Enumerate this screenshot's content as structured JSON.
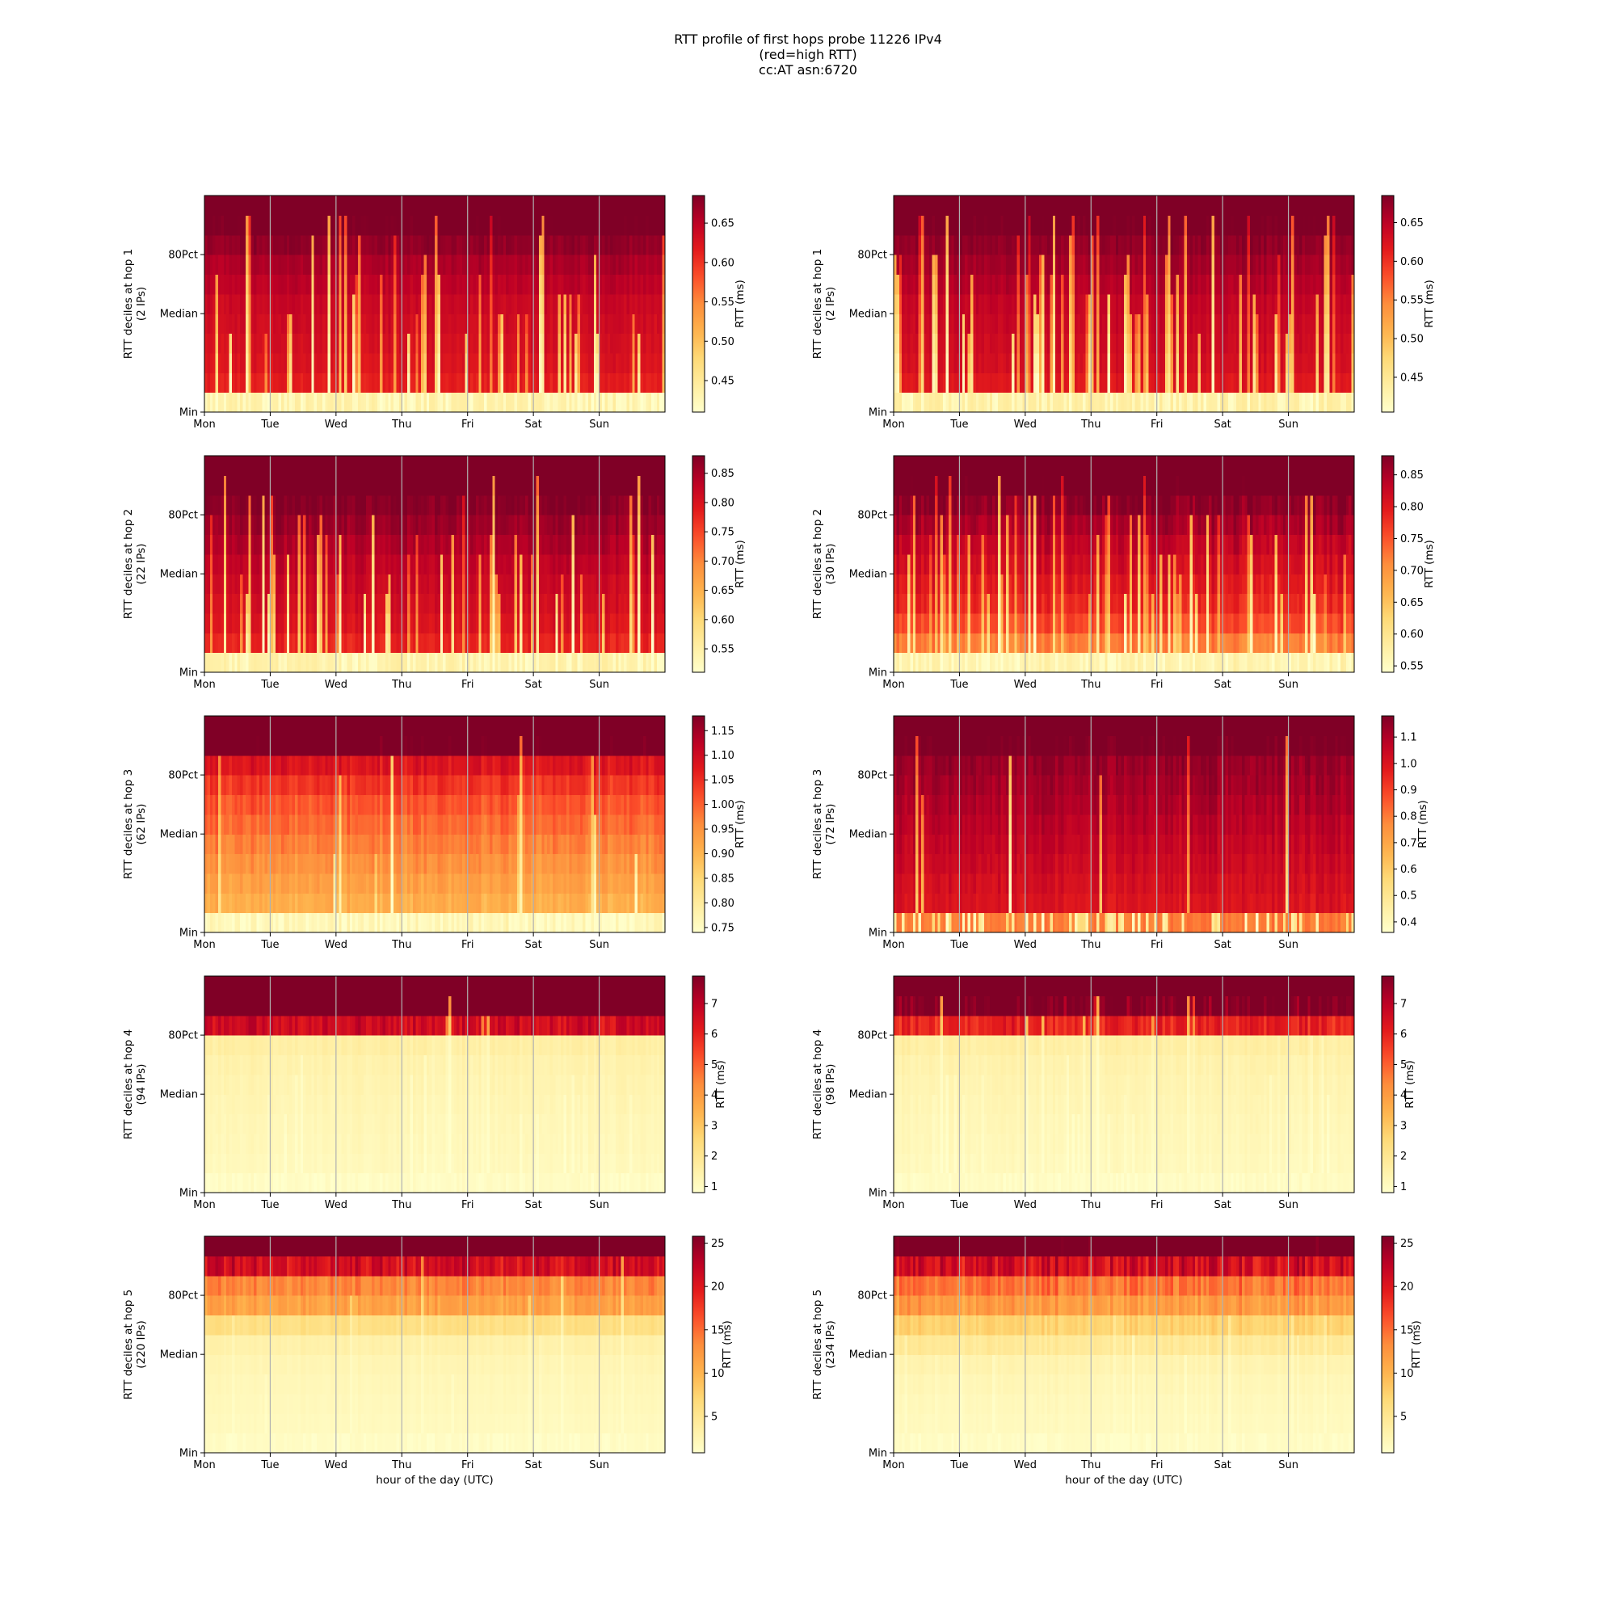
{
  "figure": {
    "title_lines": [
      "RTT profile of first hops probe 11226 IPv4",
      "(red=high RTT)",
      "cc:AT asn:6720"
    ]
  },
  "chart_data": {
    "type": "heatmap",
    "colormap": "YlOrRd",
    "colormap_stops": [
      "#ffffcc",
      "#ffeda0",
      "#fed976",
      "#feb24c",
      "#fd8d3c",
      "#fc4e2a",
      "#e31a1c",
      "#bd0026",
      "#800026"
    ],
    "grid_color": "#b0b0b0",
    "x_ticks": [
      "Mon",
      "Tue",
      "Wed",
      "Thu",
      "Fri",
      "Sat",
      "Sun"
    ],
    "x_range_hours": [
      0,
      168
    ],
    "xlabel": "hour of the day (UTC)",
    "y_ticks": [
      "Min",
      "Median",
      "80Pct"
    ],
    "colorbar_label": "RTT (ms)",
    "panels": [
      {
        "name": "hop1-a",
        "ylabel": "RTT deciles at hop 1",
        "ips": "(2 IPs)",
        "row": 0,
        "col": 0,
        "vmin": 0.41,
        "vmax": 0.685,
        "cb_ticks": [
          0.45,
          0.5,
          0.55,
          0.6,
          0.65
        ],
        "cb_tick_labels": [
          "0.45",
          "0.50",
          "0.55",
          "0.60",
          "0.65"
        ],
        "deciles": [
          0.44,
          0.615,
          0.625,
          0.63,
          0.635,
          0.64,
          0.65,
          0.66,
          0.675,
          0.69,
          0.75
        ],
        "noise": 0.012,
        "dip_prob": 0.25
      },
      {
        "name": "hop1-b",
        "ylabel": "RTT deciles at hop 1",
        "ips": "(2 IPs)",
        "row": 0,
        "col": 1,
        "vmin": 0.405,
        "vmax": 0.685,
        "cb_ticks": [
          0.45,
          0.5,
          0.55,
          0.6,
          0.65
        ],
        "cb_tick_labels": [
          "0.45",
          "0.50",
          "0.55",
          "0.60",
          "0.65"
        ],
        "deciles": [
          0.44,
          0.62,
          0.63,
          0.635,
          0.64,
          0.645,
          0.655,
          0.665,
          0.675,
          0.69,
          0.75
        ],
        "noise": 0.012,
        "dip_prob": 0.35
      },
      {
        "name": "hop2-a",
        "ylabel": "RTT deciles at hop 2",
        "ips": "(22 IPs)",
        "row": 1,
        "col": 0,
        "vmin": 0.51,
        "vmax": 0.88,
        "cb_ticks": [
          0.55,
          0.6,
          0.65,
          0.7,
          0.75,
          0.8,
          0.85
        ],
        "cb_tick_labels": [
          "0.55",
          "0.60",
          "0.65",
          "0.70",
          "0.75",
          "0.80",
          "0.85"
        ],
        "deciles": [
          0.55,
          0.78,
          0.8,
          0.81,
          0.82,
          0.83,
          0.845,
          0.86,
          0.875,
          0.9,
          1.0
        ],
        "noise": 0.015,
        "dip_prob": 0.3
      },
      {
        "name": "hop2-b",
        "ylabel": "RTT deciles at hop 2",
        "ips": "(30 IPs)",
        "row": 1,
        "col": 1,
        "vmin": 0.54,
        "vmax": 0.88,
        "cb_ticks": [
          0.55,
          0.6,
          0.65,
          0.7,
          0.75,
          0.8,
          0.85
        ],
        "cb_tick_labels": [
          "0.55",
          "0.60",
          "0.65",
          "0.70",
          "0.75",
          "0.80",
          "0.85"
        ],
        "deciles": [
          0.57,
          0.72,
          0.76,
          0.785,
          0.8,
          0.815,
          0.83,
          0.85,
          0.87,
          0.9,
          1.0
        ],
        "noise": 0.02,
        "dip_prob": 0.3
      },
      {
        "name": "hop3-a",
        "ylabel": "RTT deciles at hop 3",
        "ips": "(62 IPs)",
        "row": 2,
        "col": 0,
        "vmin": 0.74,
        "vmax": 1.18,
        "cb_ticks": [
          0.75,
          0.8,
          0.85,
          0.9,
          0.95,
          1.0,
          1.05,
          1.1,
          1.15
        ],
        "cb_tick_labels": [
          "0.75",
          "0.80",
          "0.85",
          "0.90",
          "0.95",
          "1.00",
          "1.05",
          "1.10",
          "1.15"
        ],
        "deciles": [
          0.77,
          0.91,
          0.93,
          0.95,
          0.97,
          0.99,
          1.01,
          1.04,
          1.08,
          1.2,
          1.4
        ],
        "noise": 0.02,
        "dip_prob": 0.04
      },
      {
        "name": "hop3-b",
        "ylabel": "RTT deciles at hop 3",
        "ips": "(72 IPs)",
        "row": 2,
        "col": 1,
        "vmin": 0.36,
        "vmax": 1.18,
        "cb_ticks": [
          0.4,
          0.5,
          0.6,
          0.7,
          0.8,
          0.9,
          1.0,
          1.1
        ],
        "cb_tick_labels": [
          "0.4",
          "0.5",
          "0.6",
          "0.7",
          "0.8",
          "0.9",
          "1.0",
          "1.1"
        ],
        "deciles": [
          0.8,
          1.0,
          1.02,
          1.04,
          1.06,
          1.08,
          1.1,
          1.12,
          1.14,
          1.2,
          1.4
        ],
        "noise": 0.03,
        "dip_prob": 0.03
      },
      {
        "name": "hop4-a",
        "ylabel": "RTT deciles at hop 4",
        "ips": "(94 IPs)",
        "row": 3,
        "col": 0,
        "vmin": 0.8,
        "vmax": 7.9,
        "cb_ticks": [
          1,
          2,
          3,
          4,
          5,
          6,
          7
        ],
        "cb_tick_labels": [
          "1",
          "2",
          "3",
          "4",
          "5",
          "6",
          "7"
        ],
        "deciles": [
          1.0,
          1.12,
          1.18,
          1.22,
          1.28,
          1.34,
          1.42,
          1.6,
          6.6,
          9.0,
          12.0
        ],
        "noise": 0.08,
        "dip_prob": 0.12
      },
      {
        "name": "hop4-b",
        "ylabel": "RTT deciles at hop 4",
        "ips": "(98 IPs)",
        "row": 3,
        "col": 1,
        "vmin": 0.8,
        "vmax": 7.9,
        "cb_ticks": [
          1,
          2,
          3,
          4,
          5,
          6,
          7
        ],
        "cb_tick_labels": [
          "1",
          "2",
          "3",
          "4",
          "5",
          "6",
          "7"
        ],
        "deciles": [
          1.0,
          1.12,
          1.18,
          1.22,
          1.28,
          1.34,
          1.42,
          1.6,
          6.0,
          8.0,
          12.0
        ],
        "noise": 0.08,
        "dip_prob": 0.16
      },
      {
        "name": "hop5-a",
        "ylabel": "RTT deciles at hop 5",
        "ips": "(220 IPs)",
        "row": 4,
        "col": 0,
        "vmin": 0.8,
        "vmax": 25.8,
        "cb_ticks": [
          5,
          10,
          15,
          20,
          25
        ],
        "cb_tick_labels": [
          "5",
          "10",
          "15",
          "20",
          "25"
        ],
        "deciles": [
          1.5,
          1.8,
          2.0,
          2.2,
          2.5,
          3.2,
          6.0,
          11.5,
          13.5,
          21.0,
          30.0
        ],
        "noise": 0.1,
        "dip_prob": 0.08
      },
      {
        "name": "hop5-b",
        "ylabel": "RTT deciles at hop 5",
        "ips": "(234 IPs)",
        "row": 4,
        "col": 1,
        "vmin": 0.8,
        "vmax": 25.8,
        "cb_ticks": [
          5,
          10,
          15,
          20,
          25
        ],
        "cb_tick_labels": [
          "5",
          "10",
          "15",
          "20",
          "25"
        ],
        "deciles": [
          1.5,
          1.8,
          2.0,
          2.3,
          2.8,
          4.5,
          7.5,
          12.0,
          14.5,
          21.0,
          30.0
        ],
        "noise": 0.12,
        "dip_prob": 0.1
      }
    ]
  }
}
